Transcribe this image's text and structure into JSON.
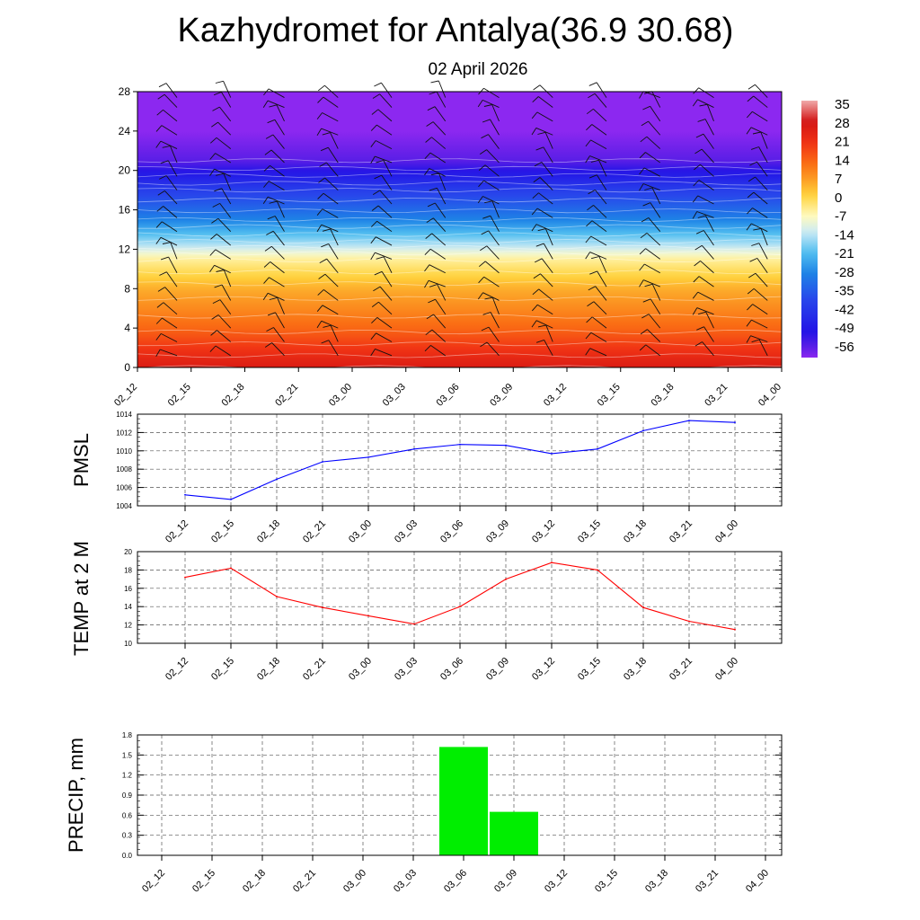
{
  "title": "Kazhydromet for Antalya(36.9 30.68)",
  "subtitle": "02 April 2026",
  "times": [
    "02_12",
    "02_15",
    "02_18",
    "02_21",
    "03_00",
    "03_03",
    "03_06",
    "03_09",
    "03_12",
    "03_15",
    "03_18",
    "03_21",
    "04_00"
  ],
  "chart_data": [
    {
      "type": "heatmap",
      "name_id": "temperature-profile",
      "x": [
        "02_12",
        "02_15",
        "02_18",
        "02_21",
        "03_00",
        "03_03",
        "03_06",
        "03_09",
        "03_12",
        "03_15",
        "03_18",
        "03_21",
        "04_00"
      ],
      "y_ticks": [
        0,
        4,
        8,
        12,
        16,
        20,
        24,
        28
      ],
      "ylim": [
        0,
        28
      ],
      "colorbar_labels": [
        "35",
        "28",
        "21",
        "14",
        "7",
        "0",
        "-7",
        "-14",
        "-21",
        "-28",
        "-35",
        "-42",
        "-49",
        "-56"
      ],
      "colorbar_range": [
        -60,
        38
      ],
      "temperature_by_level": [
        {
          "level": 0,
          "value": 28
        },
        {
          "level": 4,
          "value": 15
        },
        {
          "level": 8,
          "value": 6
        },
        {
          "level": 11,
          "value": -4
        },
        {
          "level": 12.5,
          "value": -14
        },
        {
          "level": 15,
          "value": -28
        },
        {
          "level": 18,
          "value": -40
        },
        {
          "level": 21,
          "value": -56
        },
        {
          "level": 24,
          "value": -60
        },
        {
          "level": 28,
          "value": -60
        }
      ],
      "overlay": "wind barbs"
    },
    {
      "type": "line",
      "name_id": "pmsl",
      "ylabel": "PMSL",
      "x": [
        "02_12",
        "02_15",
        "02_18",
        "02_21",
        "03_00",
        "03_03",
        "03_06",
        "03_09",
        "03_12",
        "03_15",
        "03_18",
        "03_21",
        "04_00"
      ],
      "values": [
        1005.2,
        1004.7,
        1006.9,
        1008.8,
        1009.3,
        1010.2,
        1010.7,
        1010.6,
        1009.7,
        1010.2,
        1012.2,
        1013.3,
        1013.1
      ],
      "ylim": [
        1004,
        1014
      ],
      "y_ticks": [
        1004,
        1006,
        1008,
        1010,
        1012,
        1014
      ],
      "color": "#0000ff",
      "grid": true
    },
    {
      "type": "line",
      "name_id": "temp2m",
      "ylabel": "TEMP at 2 M",
      "x": [
        "02_12",
        "02_15",
        "02_18",
        "02_21",
        "03_00",
        "03_03",
        "03_06",
        "03_09",
        "03_12",
        "03_15",
        "03_18",
        "03_21",
        "04_00"
      ],
      "values": [
        17.2,
        18.2,
        15.1,
        13.9,
        13.0,
        12.1,
        14.0,
        17.0,
        18.8,
        18.0,
        13.9,
        12.4,
        11.5
      ],
      "ylim": [
        10,
        20
      ],
      "y_ticks": [
        10,
        12,
        14,
        16,
        18,
        20
      ],
      "color": "#ff0000",
      "grid": true
    },
    {
      "type": "bar",
      "name_id": "precip",
      "ylabel": "PRECIP, mm",
      "categories": [
        "02_12",
        "02_15",
        "02_18",
        "02_21",
        "03_00",
        "03_03",
        "03_06",
        "03_09",
        "03_12",
        "03_15",
        "03_18",
        "03_21",
        "04_00"
      ],
      "values": [
        0,
        0,
        0,
        0,
        0,
        0,
        1.62,
        0.65,
        0,
        0,
        0,
        0,
        0
      ],
      "ylim": [
        0,
        1.8
      ],
      "y_ticks": [
        "0.0",
        "0.3",
        "0.6",
        "0.9",
        "1.2",
        "1.5",
        "1.8"
      ],
      "color": "#00ee00",
      "grid": true
    }
  ]
}
